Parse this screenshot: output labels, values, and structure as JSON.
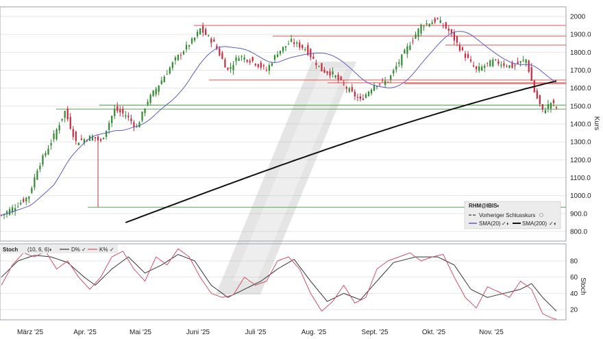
{
  "chart_data": [
    {
      "type": "candlestick",
      "ylabel": "Kurs",
      "ylim": [
        720,
        2040
      ],
      "y_ticks": [
        "2000",
        "1900.0",
        "1800.0",
        "1700.0",
        "1600.0",
        "1500.0",
        "1400.0",
        "1300.0",
        "1200.0",
        "1100.0",
        "1000.0",
        "900.0",
        "800.0"
      ],
      "y_tick_values": [
        2000,
        1900,
        1800,
        1700,
        1600,
        1500,
        1400,
        1300,
        1200,
        1100,
        1000,
        900,
        800
      ],
      "x_ticks": [
        "März '25",
        "Apr. '25",
        "Mai '25",
        "Juni '25",
        "Juli '25",
        "Aug. '25",
        "Sept. '25",
        "Okt. '25",
        "Nov. '25"
      ],
      "grid": true,
      "legend": {
        "position": "bottom-right",
        "symbol": "RHM@IBIS",
        "entries": [
          {
            "label": "Vorheriger Schlusskurs"
          },
          {
            "label": "SMA(20)",
            "color": "#5b5bc8"
          },
          {
            "label": "SMA(200)",
            "color": "#111111"
          }
        ]
      },
      "colors": {
        "up": "#2e8b2e",
        "down": "#c8283c",
        "sma20": "#5b5bc8",
        "sma200": "#111111",
        "resistance": "#e05555",
        "support": "#55aa55"
      },
      "horizontal_levels": {
        "red": [
          1950,
          1890,
          1840,
          1645,
          1630,
          1625
        ],
        "green": [
          1505,
          1483,
          935
        ]
      },
      "anchors": [
        [
          0,
          890
        ],
        [
          6,
          950
        ],
        [
          10,
          1000
        ],
        [
          13,
          1150
        ],
        [
          18,
          1300
        ],
        [
          23,
          1470
        ],
        [
          27,
          1300
        ],
        [
          33,
          1330
        ],
        [
          36,
          1300
        ],
        [
          41,
          1480
        ],
        [
          45,
          1450
        ],
        [
          49,
          1380
        ],
        [
          53,
          1530
        ],
        [
          57,
          1620
        ],
        [
          63,
          1760
        ],
        [
          70,
          1880
        ],
        [
          72,
          1930
        ],
        [
          77,
          1850
        ],
        [
          82,
          1700
        ],
        [
          86,
          1780
        ],
        [
          91,
          1750
        ],
        [
          96,
          1700
        ],
        [
          100,
          1800
        ],
        [
          105,
          1860
        ],
        [
          110,
          1820
        ],
        [
          116,
          1700
        ],
        [
          120,
          1680
        ],
        [
          125,
          1600
        ],
        [
          130,
          1530
        ],
        [
          135,
          1620
        ],
        [
          140,
          1640
        ],
        [
          146,
          1800
        ],
        [
          152,
          1950
        ],
        [
          158,
          1980
        ],
        [
          162,
          1920
        ],
        [
          167,
          1800
        ],
        [
          172,
          1700
        ],
        [
          178,
          1750
        ],
        [
          185,
          1720
        ],
        [
          190,
          1760
        ],
        [
          193,
          1580
        ],
        [
          196,
          1470
        ],
        [
          199,
          1520
        ],
        [
          201,
          1490
        ]
      ],
      "sma200_range": [
        850,
        1640
      ]
    },
    {
      "type": "line",
      "title": "Stoch",
      "params": "(10, 6, 6)",
      "series": [
        {
          "name": "D%",
          "color": "#333333"
        },
        {
          "name": "K%",
          "color": "#d0506a"
        }
      ],
      "ylabel": "Stoch",
      "ylim": [
        0,
        100
      ],
      "y_ticks": [
        "80",
        "60",
        "40",
        "20"
      ],
      "y_tick_values": [
        80,
        60,
        40,
        20
      ],
      "anchors_k": [
        [
          0,
          50
        ],
        [
          4,
          75
        ],
        [
          8,
          90
        ],
        [
          12,
          85
        ],
        [
          16,
          92
        ],
        [
          20,
          70
        ],
        [
          24,
          80
        ],
        [
          28,
          60
        ],
        [
          32,
          45
        ],
        [
          36,
          60
        ],
        [
          40,
          85
        ],
        [
          44,
          92
        ],
        [
          48,
          70
        ],
        [
          52,
          55
        ],
        [
          56,
          85
        ],
        [
          60,
          75
        ],
        [
          64,
          95
        ],
        [
          68,
          85
        ],
        [
          72,
          60
        ],
        [
          76,
          40
        ],
        [
          80,
          35
        ],
        [
          84,
          38
        ],
        [
          88,
          60
        ],
        [
          92,
          50
        ],
        [
          96,
          55
        ],
        [
          100,
          80
        ],
        [
          104,
          85
        ],
        [
          108,
          70
        ],
        [
          112,
          40
        ],
        [
          116,
          18
        ],
        [
          120,
          30
        ],
        [
          124,
          50
        ],
        [
          128,
          28
        ],
        [
          132,
          35
        ],
        [
          136,
          70
        ],
        [
          140,
          80
        ],
        [
          144,
          85
        ],
        [
          148,
          90
        ],
        [
          152,
          80
        ],
        [
          156,
          85
        ],
        [
          160,
          88
        ],
        [
          164,
          60
        ],
        [
          168,
          35
        ],
        [
          172,
          22
        ],
        [
          176,
          48
        ],
        [
          180,
          42
        ],
        [
          184,
          35
        ],
        [
          188,
          55
        ],
        [
          192,
          45
        ],
        [
          196,
          15
        ],
        [
          199,
          10
        ],
        [
          201,
          8
        ]
      ],
      "anchors_d": [
        [
          0,
          60
        ],
        [
          6,
          80
        ],
        [
          12,
          87
        ],
        [
          18,
          85
        ],
        [
          24,
          78
        ],
        [
          30,
          60
        ],
        [
          34,
          50
        ],
        [
          40,
          70
        ],
        [
          46,
          85
        ],
        [
          52,
          65
        ],
        [
          58,
          75
        ],
        [
          64,
          88
        ],
        [
          70,
          80
        ],
        [
          76,
          50
        ],
        [
          82,
          35
        ],
        [
          88,
          45
        ],
        [
          94,
          55
        ],
        [
          100,
          70
        ],
        [
          106,
          82
        ],
        [
          112,
          55
        ],
        [
          118,
          30
        ],
        [
          124,
          40
        ],
        [
          130,
          32
        ],
        [
          136,
          55
        ],
        [
          142,
          78
        ],
        [
          150,
          85
        ],
        [
          158,
          85
        ],
        [
          164,
          75
        ],
        [
          170,
          45
        ],
        [
          176,
          35
        ],
        [
          182,
          40
        ],
        [
          188,
          45
        ],
        [
          192,
          52
        ],
        [
          196,
          35
        ],
        [
          201,
          18
        ]
      ]
    }
  ]
}
